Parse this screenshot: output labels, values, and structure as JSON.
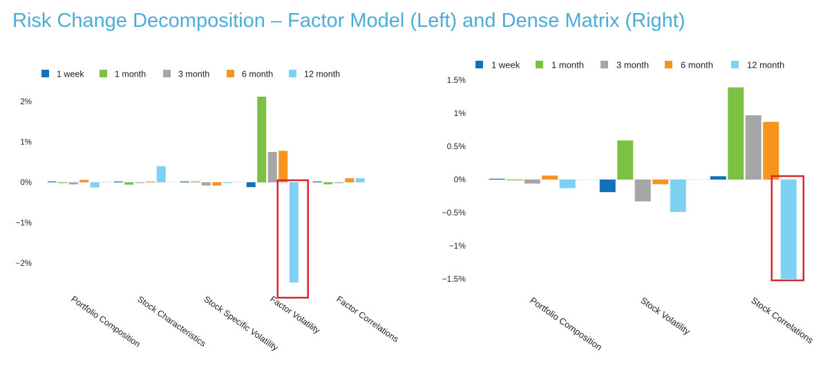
{
  "title": "Risk Change Decomposition – Factor Model (Left) and Dense Matrix (Right)",
  "colors": {
    "title": "#4cacd8",
    "highlight_box": "#d9242b",
    "series": [
      "#1272b6",
      "#7cc142",
      "#a6a6a6",
      "#f7941d",
      "#7fd1f4"
    ]
  },
  "chart_data": [
    {
      "type": "bar",
      "title": "",
      "xlabel": "",
      "ylabel": "",
      "ylim": [
        -2.8,
        2.3
      ],
      "grid": false,
      "legend": "top",
      "categories": [
        "Portfolio Composition",
        "Stock Characteristics",
        "Stock Specific Volatility",
        "Factor Volatility",
        "Factor  Correlations"
      ],
      "yticks": [
        {
          "value": 2,
          "label": "2%"
        },
        {
          "value": 1,
          "label": "1%"
        },
        {
          "value": 0,
          "label": "0%"
        },
        {
          "value": -1,
          "label": "−1%"
        },
        {
          "value": -2,
          "label": "−2%"
        }
      ],
      "series": [
        {
          "name": "1 week",
          "values": [
            0.0,
            0.01,
            0.01,
            -0.12,
            0.0
          ]
        },
        {
          "name": "1 month",
          "values": [
            -0.01,
            -0.06,
            0.0,
            2.12,
            -0.05
          ]
        },
        {
          "name": "3 month",
          "values": [
            -0.05,
            -0.01,
            -0.08,
            0.75,
            -0.02
          ]
        },
        {
          "name": "6 month",
          "values": [
            0.06,
            0.01,
            -0.08,
            0.78,
            0.1
          ]
        },
        {
          "name": "12 month",
          "values": [
            -0.13,
            0.4,
            -0.02,
            -2.48,
            0.1
          ]
        }
      ],
      "highlight": {
        "category": "Factor Volatility",
        "series": "12 month"
      }
    },
    {
      "type": "bar",
      "title": "",
      "xlabel": "",
      "ylabel": "",
      "ylim": [
        -1.62,
        1.6
      ],
      "grid": false,
      "legend": "top",
      "categories": [
        "Portfolio Composition",
        "Stock Volatility",
        "Stock Correlations"
      ],
      "yticks": [
        {
          "value": 1.5,
          "label": "1.5%"
        },
        {
          "value": 1,
          "label": "1%"
        },
        {
          "value": 0.5,
          "label": "0.5%"
        },
        {
          "value": 0,
          "label": "0%"
        },
        {
          "value": -0.5,
          "label": "−0.5%"
        },
        {
          "value": -1,
          "label": "−1%"
        },
        {
          "value": -1.5,
          "label": "−1.5%"
        }
      ],
      "series": [
        {
          "name": "1 week",
          "values": [
            0.0,
            -0.19,
            0.05
          ]
        },
        {
          "name": "1 month",
          "values": [
            -0.01,
            0.59,
            1.39
          ]
        },
        {
          "name": "3 month",
          "values": [
            -0.06,
            -0.33,
            0.97
          ]
        },
        {
          "name": "6 month",
          "values": [
            0.06,
            -0.07,
            0.87
          ]
        },
        {
          "name": "12 month",
          "values": [
            -0.13,
            -0.49,
            -1.5
          ]
        }
      ],
      "highlight": {
        "category": "Stock Correlations",
        "series": "12 month"
      }
    }
  ]
}
